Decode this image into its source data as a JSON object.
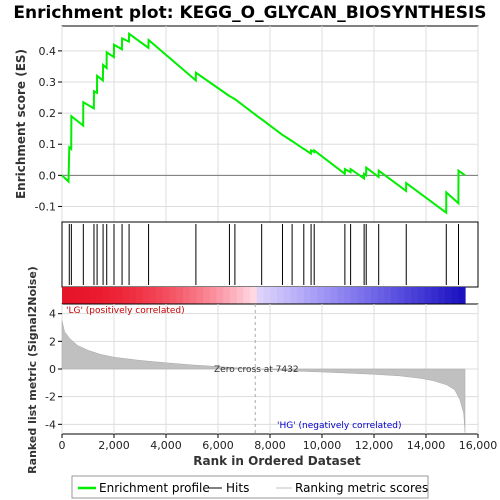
{
  "chart_data": {
    "type": "line",
    "title": "Enrichment plot: KEGG_O_GLYCAN_BIOSYNTHESIS",
    "xlabel": "Rank in Ordered Dataset",
    "ylabel_top": "Enrichment score (ES)",
    "ylabel_bottom": "Ranked list metric (Signal2Noise)",
    "xlim": [
      0,
      16000
    ],
    "x_ticks": [
      0,
      2000,
      4000,
      6000,
      8000,
      10000,
      12000,
      14000,
      16000
    ],
    "x_tick_labels": [
      "0",
      "2,000",
      "4,000",
      "6,000",
      "8,000",
      "10,000",
      "12,000",
      "14,000",
      "16,000"
    ],
    "es_ylim": [
      -0.15,
      0.48
    ],
    "es_ticks": [
      -0.1,
      0.0,
      0.1,
      0.2,
      0.3,
      0.4
    ],
    "es_tick_labels": [
      "-0.1",
      "0.0",
      "0.1",
      "0.2",
      "0.3",
      "0.4"
    ],
    "metric_ylim": [
      -4.7,
      4.7
    ],
    "metric_ticks": [
      -4,
      -2,
      0,
      2,
      4
    ],
    "metric_tick_labels": [
      "-4",
      "-2",
      "0",
      "2",
      "4"
    ],
    "grid": true,
    "hits": [
      280,
      360,
      820,
      1230,
      1350,
      1580,
      1720,
      2000,
      2310,
      2580,
      3330,
      5150,
      6440,
      6650,
      7680,
      8480,
      8850,
      9300,
      9580,
      9700,
      10880,
      11100,
      11620,
      11700,
      12180,
      13240,
      14780,
      15250
    ],
    "es_profile": [
      [
        0,
        0.0
      ],
      [
        250,
        -0.02
      ],
      [
        280,
        0.09
      ],
      [
        355,
        0.085
      ],
      [
        360,
        0.19
      ],
      [
        815,
        0.16
      ],
      [
        820,
        0.235
      ],
      [
        1225,
        0.215
      ],
      [
        1230,
        0.27
      ],
      [
        1345,
        0.265
      ],
      [
        1350,
        0.32
      ],
      [
        1575,
        0.305
      ],
      [
        1580,
        0.355
      ],
      [
        1715,
        0.345
      ],
      [
        1720,
        0.395
      ],
      [
        1995,
        0.38
      ],
      [
        2000,
        0.42
      ],
      [
        2305,
        0.405
      ],
      [
        2310,
        0.44
      ],
      [
        2575,
        0.43
      ],
      [
        2580,
        0.455
      ],
      [
        3325,
        0.41
      ],
      [
        3330,
        0.435
      ],
      [
        5145,
        0.305
      ],
      [
        5150,
        0.33
      ],
      [
        6435,
        0.255
      ],
      [
        6440,
        0.255
      ],
      [
        6645,
        0.245
      ],
      [
        6650,
        0.245
      ],
      [
        7675,
        0.18
      ],
      [
        7680,
        0.18
      ],
      [
        8475,
        0.13
      ],
      [
        8480,
        0.13
      ],
      [
        8845,
        0.11
      ],
      [
        8850,
        0.11
      ],
      [
        9295,
        0.085
      ],
      [
        9300,
        0.085
      ],
      [
        9575,
        0.07
      ],
      [
        9580,
        0.08
      ],
      [
        9695,
        0.075
      ],
      [
        9700,
        0.08
      ],
      [
        10875,
        0.005
      ],
      [
        10880,
        0.02
      ],
      [
        11095,
        0.01
      ],
      [
        11100,
        0.02
      ],
      [
        11615,
        -0.01
      ],
      [
        11620,
        0.005
      ],
      [
        11695,
        0.0
      ],
      [
        11700,
        0.025
      ],
      [
        12175,
        -0.005
      ],
      [
        12180,
        0.015
      ],
      [
        13235,
        -0.05
      ],
      [
        13240,
        -0.025
      ],
      [
        14775,
        -0.12
      ],
      [
        14780,
        -0.055
      ],
      [
        15245,
        -0.09
      ],
      [
        15250,
        0.015
      ],
      [
        15500,
        0.0
      ]
    ],
    "metric_profile": [
      [
        0,
        3.5
      ],
      [
        100,
        2.7
      ],
      [
        300,
        2.2
      ],
      [
        600,
        1.7
      ],
      [
        1000,
        1.35
      ],
      [
        1500,
        1.05
      ],
      [
        2000,
        0.85
      ],
      [
        3000,
        0.62
      ],
      [
        4000,
        0.45
      ],
      [
        5000,
        0.3
      ],
      [
        6000,
        0.17
      ],
      [
        7000,
        0.05
      ],
      [
        7432,
        0.0
      ],
      [
        8000,
        -0.05
      ],
      [
        9000,
        -0.15
      ],
      [
        10000,
        -0.22
      ],
      [
        11000,
        -0.3
      ],
      [
        12000,
        -0.38
      ],
      [
        13000,
        -0.5
      ],
      [
        13800,
        -0.68
      ],
      [
        14300,
        -0.85
      ],
      [
        14800,
        -1.15
      ],
      [
        15100,
        -1.5
      ],
      [
        15300,
        -2.2
      ],
      [
        15450,
        -3.2
      ],
      [
        15500,
        -4.6
      ]
    ],
    "zero_cross_label": "Zero cross at 7432",
    "zero_cross_rank": 7432,
    "pos_label": "'LG' (positively correlated)",
    "neg_label": "'HG' (negatively correlated)",
    "colors": {
      "es_line": "#00ee00",
      "hit": "#000000",
      "metric_fill": "#c0c0c0",
      "pos_text": "#cc0000",
      "neg_text": "#0000cc",
      "grid": "#dddddd"
    },
    "legend": {
      "items": [
        "Enrichment profile",
        "Hits",
        "Ranking metric scores"
      ],
      "placement": "bottom"
    }
  }
}
